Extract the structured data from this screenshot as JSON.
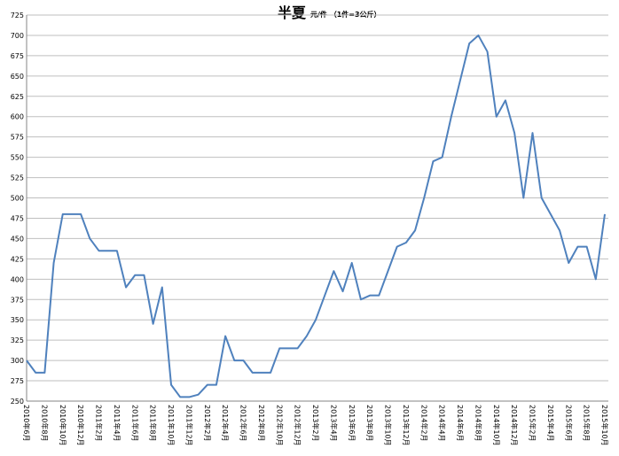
{
  "chart_data": {
    "type": "line",
    "title": "半夏",
    "subtitle": "元/件 （1件=3公斤）",
    "categories": [
      "2010年6月",
      null,
      "2010年8月",
      null,
      "2010年10月",
      null,
      "2010年12月",
      null,
      "2011年2月",
      null,
      "2011年4月",
      null,
      "2011年6月",
      null,
      "2011年8月",
      null,
      "2011年10月",
      null,
      "2011年12月",
      null,
      "2012年2月",
      null,
      "2012年4月",
      null,
      "2012年6月",
      null,
      "2012年8月",
      null,
      "2012年10月",
      null,
      "2012年12月",
      null,
      "2013年2月",
      null,
      "2013年4月",
      null,
      "2013年6月",
      null,
      "2013年8月",
      null,
      "2013年10月",
      null,
      "2013年12月",
      null,
      "2014年2月",
      null,
      "2014年4月",
      null,
      "2014年6月",
      null,
      "2014年8月",
      null,
      "2014年10月",
      null,
      "2014年12月",
      null,
      "2015年2月",
      null,
      "2015年4月",
      null,
      "2015年6月",
      null,
      "2015年8月",
      null,
      "2015年10月"
    ],
    "values": [
      300,
      285,
      285,
      420,
      480,
      480,
      480,
      450,
      435,
      435,
      435,
      390,
      405,
      405,
      345,
      390,
      270,
      255,
      255,
      258,
      270,
      270,
      330,
      300,
      300,
      285,
      285,
      285,
      315,
      315,
      315,
      330,
      350,
      380,
      410,
      385,
      420,
      375,
      380,
      380,
      410,
      440,
      445,
      460,
      500,
      545,
      550,
      600,
      645,
      690,
      700,
      680,
      600,
      620,
      580,
      500,
      580,
      500,
      480,
      460,
      420,
      440,
      440,
      400,
      480
    ],
    "color": "#4f81bd",
    "ylim": [
      250,
      725
    ],
    "yticks": [
      250,
      275,
      300,
      325,
      350,
      375,
      400,
      425,
      450,
      475,
      500,
      525,
      550,
      575,
      600,
      625,
      650,
      675,
      700,
      725
    ],
    "grid": true
  }
}
